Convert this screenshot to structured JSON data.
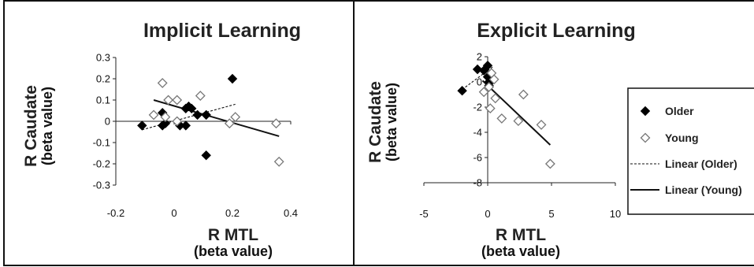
{
  "chart_data": [
    {
      "type": "scatter",
      "title": "Implicit Learning",
      "xlabel": "R MTL",
      "xlabel_unit": "(beta value)",
      "ylabel": "R Caudate",
      "ylabel_unit": "(beta value)",
      "xlim": [
        -0.2,
        0.4
      ],
      "ylim": [
        -0.3,
        0.3
      ],
      "xticks": [
        "-0.2",
        "0",
        "0.2",
        "0.4"
      ],
      "yticks": [
        "0.3",
        "0.2",
        "0.1",
        "0",
        "-0.1",
        "-0.2",
        "-0.3"
      ],
      "series": [
        {
          "name": "Older",
          "marker": "filled-diamond",
          "color": "#000000",
          "x": [
            -0.11,
            -0.04,
            -0.04,
            -0.03,
            0.02,
            0.04,
            0.04,
            0.05,
            0.06,
            0.08,
            0.11,
            0.11,
            0.2
          ],
          "y": [
            -0.02,
            -0.02,
            0.04,
            -0.01,
            -0.02,
            -0.02,
            0.06,
            0.07,
            0.06,
            0.03,
            0.03,
            -0.16,
            0.2
          ]
        },
        {
          "name": "Young",
          "marker": "open-diamond",
          "color": "#666666",
          "x": [
            -0.07,
            -0.04,
            -0.03,
            -0.02,
            0.01,
            0.01,
            0.09,
            0.19,
            0.21,
            0.35,
            0.36
          ],
          "y": [
            0.03,
            0.18,
            0.02,
            0.1,
            0.1,
            0.0,
            0.12,
            -0.01,
            0.02,
            -0.01,
            -0.19
          ]
        },
        {
          "name": "Linear (Older)",
          "type": "line",
          "style": "dashed",
          "x": [
            -0.11,
            0.21
          ],
          "y": [
            -0.04,
            0.08
          ]
        },
        {
          "name": "Linear (Young)",
          "type": "line",
          "style": "solid",
          "x": [
            -0.07,
            0.36
          ],
          "y": [
            0.1,
            -0.07
          ]
        }
      ]
    },
    {
      "type": "scatter",
      "title": "Explicit Learning",
      "xlabel": "R MTL",
      "xlabel_unit": "(beta value)",
      "ylabel": "R Caudate",
      "ylabel_unit": "(beta value)",
      "xlim": [
        -5,
        10
      ],
      "ylim": [
        -8,
        2
      ],
      "xticks": [
        "-5",
        "0",
        "5",
        "10"
      ],
      "yticks": [
        "2",
        "0",
        "-2",
        "-4",
        "-6",
        "-8"
      ],
      "legend_position": "right",
      "series": [
        {
          "name": "Older",
          "marker": "filled-diamond",
          "color": "#000000",
          "x": [
            -2.0,
            -0.8,
            -0.3,
            0.0,
            0.0,
            0.1,
            0.1,
            0.3,
            0.3
          ],
          "y": [
            -0.7,
            1.0,
            0.9,
            1.3,
            0.4,
            0.0,
            -0.3,
            0.1,
            0.3
          ]
        },
        {
          "name": "Young",
          "marker": "open-diamond",
          "color": "#666666",
          "x": [
            -0.3,
            0.2,
            0.3,
            0.5,
            0.6,
            1.1,
            0.1,
            2.8,
            2.4,
            4.2,
            4.9
          ],
          "y": [
            -0.8,
            -2.1,
            0.7,
            0.2,
            -1.3,
            -2.9,
            -0.4,
            -1.0,
            -3.1,
            -3.4,
            -6.5
          ]
        },
        {
          "name": "Linear (Older)",
          "type": "line",
          "style": "dashed",
          "x": [
            -2.0,
            0.4
          ],
          "y": [
            -0.6,
            1.2
          ]
        },
        {
          "name": "Linear (Young)",
          "type": "line",
          "style": "solid",
          "x": [
            -0.4,
            4.9
          ],
          "y": [
            0.1,
            -5.0
          ]
        }
      ],
      "legend": [
        {
          "label": "Older",
          "symbol": "filled-diamond"
        },
        {
          "label": "Young",
          "symbol": "open-diamond"
        },
        {
          "label": "Linear (Older)",
          "symbol": "dashed-line"
        },
        {
          "label": "Linear (Young)",
          "symbol": "solid-line"
        }
      ]
    }
  ]
}
